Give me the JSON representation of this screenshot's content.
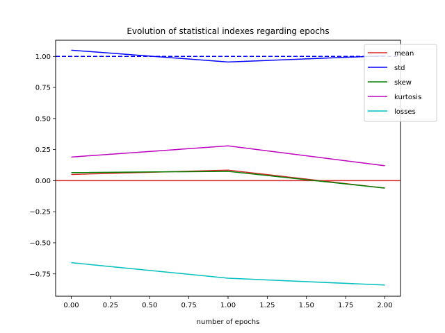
{
  "chart_data": {
    "type": "line",
    "title": "Evolution of statistical indexes regarding epochs",
    "xlabel": "number of epochs",
    "ylabel": "",
    "xlim": [
      -0.1,
      2.1
    ],
    "ylim": [
      -0.93,
      1.13
    ],
    "xticks": [
      0.0,
      0.25,
      0.5,
      0.75,
      1.0,
      1.25,
      1.5,
      1.75,
      2.0
    ],
    "xtick_labels": [
      "0.00",
      "0.25",
      "0.50",
      "0.75",
      "1.00",
      "1.25",
      "1.50",
      "1.75",
      "2.00"
    ],
    "yticks": [
      -0.75,
      -0.5,
      -0.25,
      0.0,
      0.25,
      0.5,
      0.75,
      1.0
    ],
    "ytick_labels": [
      "−0.75",
      "−0.50",
      "−0.25",
      "0.00",
      "0.25",
      "0.50",
      "0.75",
      "1.00"
    ],
    "grid": false,
    "legend_position": "top-right",
    "x": [
      0,
      1,
      2
    ],
    "series": [
      {
        "name": "mean",
        "color": "#d62728",
        "values": [
          0.05,
          0.085,
          -0.06
        ]
      },
      {
        "name": "std",
        "color": "#0000ff",
        "values": [
          1.05,
          0.955,
          1.005
        ]
      },
      {
        "name": "skew",
        "color": "#008000",
        "values": [
          0.065,
          0.075,
          -0.06
        ]
      },
      {
        "name": "kurtosis",
        "color": "#bf00bf",
        "values": [
          0.19,
          0.28,
          0.12
        ]
      },
      {
        "name": "losses",
        "color": "#00bfbf",
        "values": [
          -0.66,
          -0.785,
          -0.84
        ]
      }
    ],
    "reference_lines": [
      {
        "y": 1.0,
        "color": "#0000ff",
        "style": "dashed"
      },
      {
        "y": 0.0,
        "color": "#d62728",
        "style": "solid"
      }
    ]
  }
}
